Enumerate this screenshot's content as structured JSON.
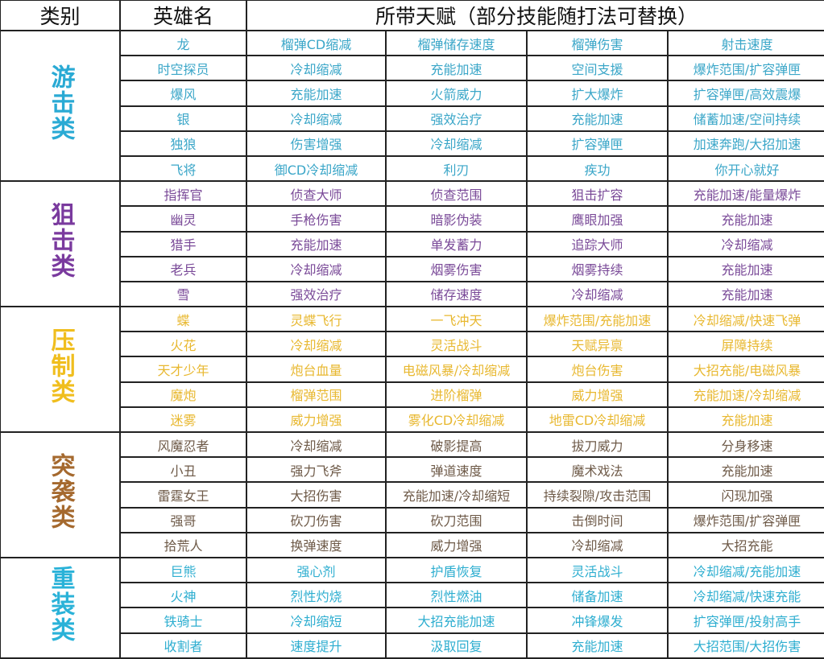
{
  "header": {
    "category": "类别",
    "hero": "英雄名",
    "talents": "所带天赋（部分技能随打法可替换）"
  },
  "groups": [
    {
      "name": "游击类",
      "label_color": "#2aaad4",
      "text_color": "#3aa6c8",
      "rows": [
        [
          "龙",
          "榴弹CD缩减",
          "榴弹储存速度",
          "榴弹伤害",
          "射击速度"
        ],
        [
          "时空探员",
          "冷却缩减",
          "充能加速",
          "空间支援",
          "爆炸范围/扩容弹匣"
        ],
        [
          "爆风",
          "充能加速",
          "火箭威力",
          "扩大爆炸",
          "扩容弹匣/高效震爆"
        ],
        [
          "银",
          "冷却缩减",
          "强效治疗",
          "充能加速",
          "储蓄加速/空间持续"
        ],
        [
          "独狼",
          "伤害增强",
          "冷却缩减",
          "扩容弹匣",
          "加速奔跑/大招加速"
        ],
        [
          "飞将",
          "御CD冷却缩减",
          "利刃",
          "疾功",
          "你开心就好"
        ]
      ]
    },
    {
      "name": "狙击类",
      "label_color": "#7a3a9e",
      "text_color": "#7a4a98",
      "rows": [
        [
          "指挥官",
          "侦查大师",
          "侦查范围",
          "狙击扩容",
          "充能加速/能量爆炸"
        ],
        [
          "幽灵",
          "手枪伤害",
          "暗影伪装",
          "鹰眼加强",
          "充能加速"
        ],
        [
          "猎手",
          "充能加速",
          "单发蓄力",
          "追踪大师",
          "冷却缩减"
        ],
        [
          "老兵",
          "冷却缩减",
          "烟雾伤害",
          "烟雾持续",
          "充能加速"
        ],
        [
          "雪",
          "强效治疗",
          "储存速度",
          "冷却缩减",
          "充能加速"
        ]
      ]
    },
    {
      "name": "压制类",
      "label_color": "#f0be1e",
      "text_color": "#e8b830",
      "rows": [
        [
          "蝶",
          "灵蝶飞行",
          "一飞冲天",
          "爆炸范围/充能加速",
          "冷却缩减/快速飞弹"
        ],
        [
          "火花",
          "冷却缩减",
          "灵活战斗",
          "天赋异禀",
          "屏障持续"
        ],
        [
          "天才少年",
          "炮台血量",
          "电磁风暴/冷却缩减",
          "炮台伤害",
          "大招充能/电磁风暴"
        ],
        [
          "魔炮",
          "榴弹范围",
          "进阶榴弹",
          "威力增强",
          "充能加速/冷却缩减"
        ],
        [
          "迷雾",
          "威力增强",
          "雾化CD冷却缩减",
          "地雷CD冷却缩减",
          "充能加速"
        ]
      ]
    },
    {
      "name": "突袭类",
      "label_color": "#a5692e",
      "text_color": "#6e5a48",
      "rows": [
        [
          "风魔忍者",
          "冷却缩减",
          "破影提高",
          "拔刀威力",
          "分身移速"
        ],
        [
          "小丑",
          "强力飞斧",
          "弹道速度",
          "魔术戏法",
          "充能加速"
        ],
        [
          "雷霆女王",
          "大招伤害",
          "充能加速/冷却缩短",
          "持续裂隙/攻击范围",
          "闪现加强"
        ],
        [
          "强哥",
          "砍刀伤害",
          "砍刀范围",
          "击倒时间",
          "爆炸范围/扩容弹匣"
        ],
        [
          "拾荒人",
          "换弹速度",
          "威力增强",
          "冷却缩减",
          "大招充能"
        ]
      ]
    },
    {
      "name": "重装类",
      "label_color": "#2ab2d8",
      "text_color": "#2eaed0",
      "rows": [
        [
          "巨熊",
          "强心剂",
          "护盾恢复",
          "灵活战斗",
          "冷却缩减/充能加速"
        ],
        [
          "火神",
          "烈性灼烧",
          "烈性燃油",
          "储备加速",
          "冷却缩减/快速充能"
        ],
        [
          "铁骑士",
          "冷却缩短",
          "大招充能加速",
          "冲锋爆发",
          "扩容弹匣/投射高手"
        ],
        [
          "收割者",
          "速度提升",
          "汲取回复",
          "充能加速",
          "大招范围/大招伤害"
        ]
      ]
    }
  ]
}
